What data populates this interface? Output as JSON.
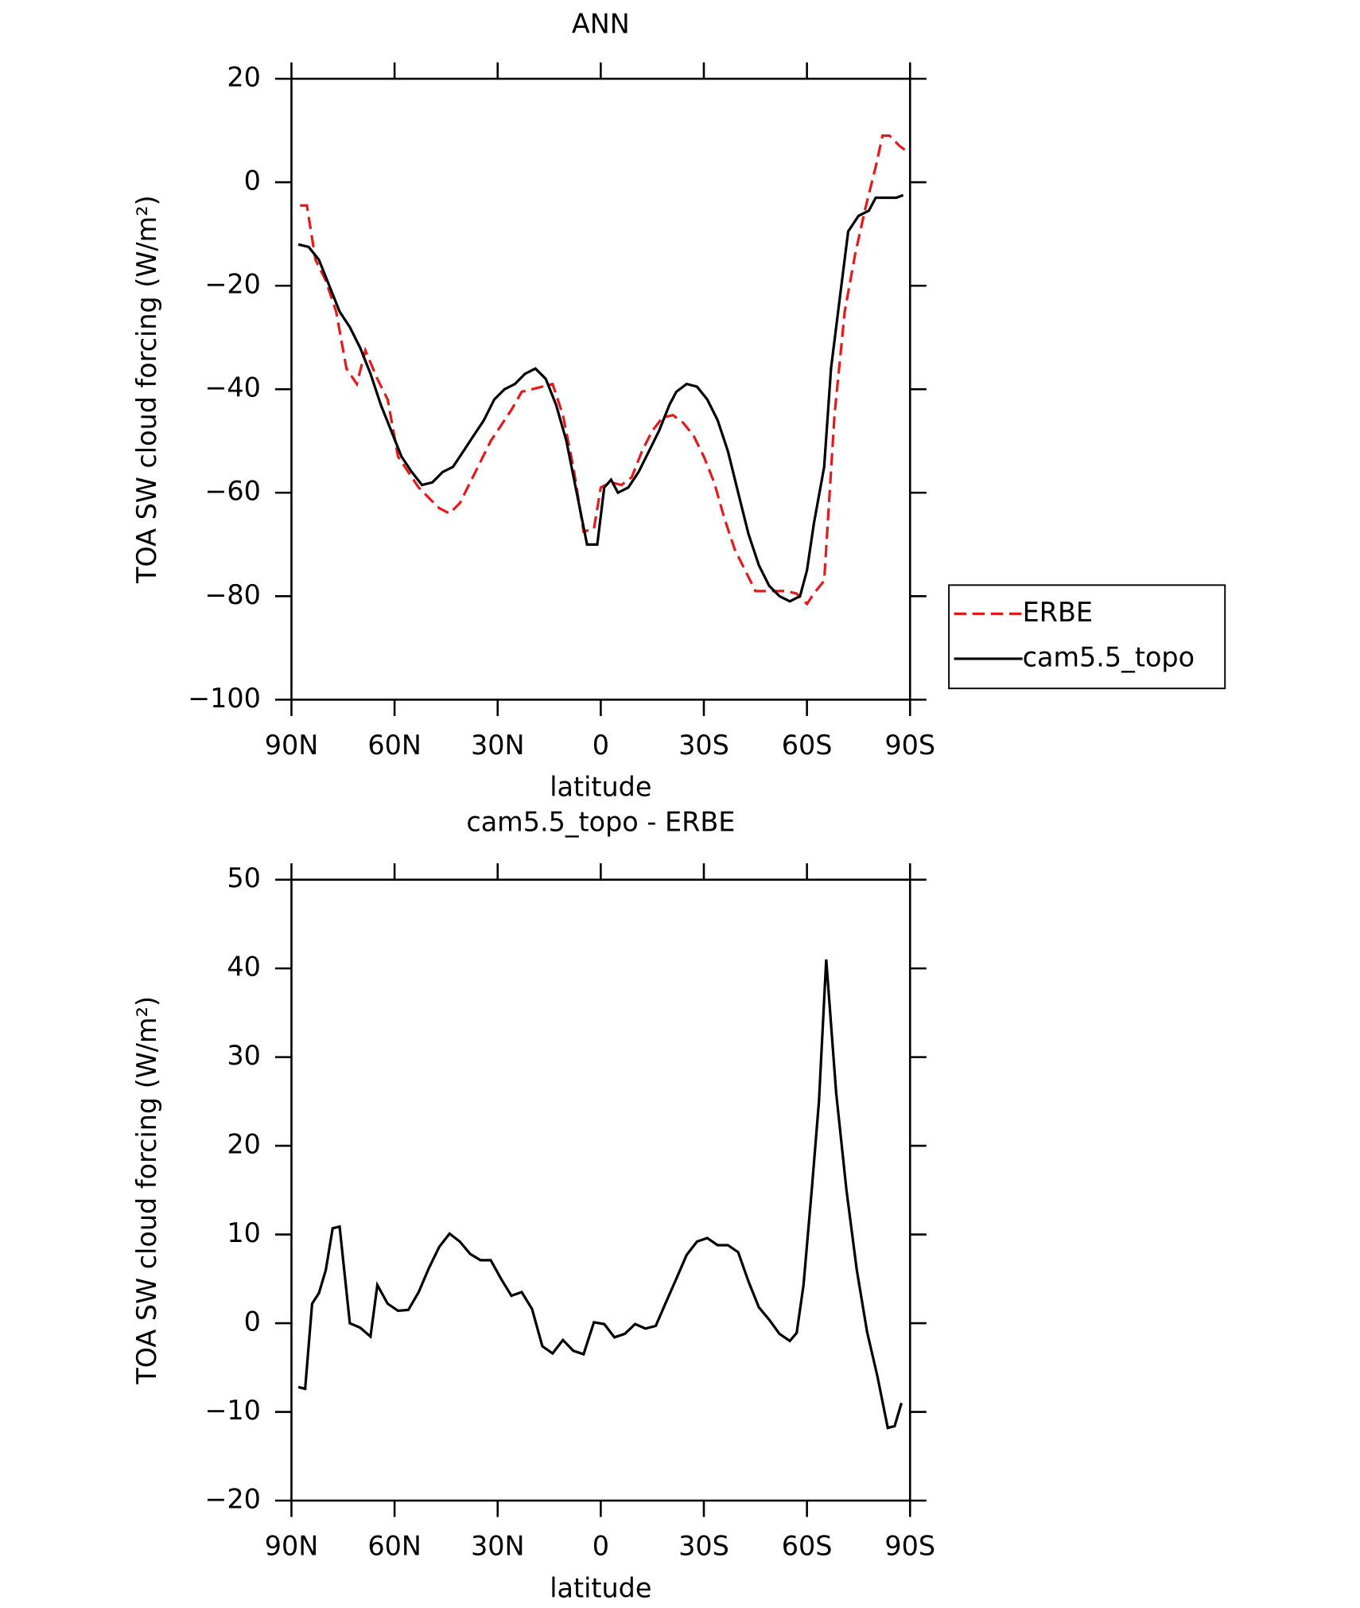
{
  "chart_data": [
    {
      "type": "line",
      "title": "ANN",
      "xlabel": "latitude",
      "ylabel": "TOA SW cloud forcing (W/m²)",
      "xlim": [
        90,
        -90
      ],
      "ylim": [
        -100,
        20
      ],
      "xticks": [
        {
          "value": 90,
          "label": "90N"
        },
        {
          "value": 60,
          "label": "60N"
        },
        {
          "value": 30,
          "label": "30N"
        },
        0,
        {
          "value": -30,
          "label": "30S"
        },
        {
          "value": -60,
          "label": "60S"
        },
        {
          "value": -90,
          "label": "90S"
        }
      ],
      "yticks": [
        {
          "value": -100,
          "label": "−100"
        },
        {
          "value": -80,
          "label": "−80"
        },
        {
          "value": -60,
          "label": "−60"
        },
        {
          "value": -40,
          "label": "−40"
        },
        {
          "value": -20,
          "label": "−20"
        },
        0,
        20
      ],
      "legend": "right",
      "series": [
        {
          "name": "ERBE",
          "color": "#e41a1c",
          "dashed": true,
          "x": [
            87.5,
            85.5,
            83,
            80,
            77,
            74,
            71,
            68.5,
            65,
            62,
            59,
            56,
            53,
            50,
            47,
            44,
            41,
            38,
            35,
            32,
            29,
            26,
            23,
            20,
            17,
            14,
            11,
            8,
            5,
            2,
            0,
            -3,
            -6,
            -9,
            -12,
            -15,
            -18,
            -21,
            -24,
            -27,
            -30,
            -33,
            -36,
            -39,
            -42,
            -45,
            -48,
            -51,
            -54,
            -57,
            -60,
            -62,
            -65,
            -68,
            -71,
            -74,
            -77,
            -80,
            -82,
            -84,
            -87,
            -89
          ],
          "values": [
            -4.5,
            -4.5,
            -15,
            -19,
            -25,
            -36,
            -39,
            -32.5,
            -38,
            -42,
            -53,
            -56,
            -59,
            -61,
            -63,
            -64,
            -62,
            -58,
            -54,
            -50,
            -47,
            -44,
            -40.5,
            -40,
            -39.5,
            -39,
            -45,
            -55,
            -67.5,
            -67,
            -59,
            -58,
            -58.5,
            -57,
            -52,
            -48,
            -45.5,
            -45,
            -46.5,
            -49,
            -53,
            -58,
            -65,
            -71,
            -75,
            -79,
            -79,
            -79,
            -79,
            -79.5,
            -81.5,
            -79.5,
            -77,
            -45,
            -25,
            -14,
            -5,
            3,
            9,
            9,
            7,
            6
          ]
        },
        {
          "name": "cam5.5_topo",
          "color": "#000000",
          "dashed": false,
          "x": [
            88,
            85,
            82,
            79,
            76,
            73,
            70,
            67,
            64,
            61,
            58,
            55,
            52,
            49,
            46,
            43,
            40,
            37,
            34,
            31,
            28,
            25,
            22,
            19,
            16,
            13,
            10,
            7,
            4,
            1,
            -1,
            -3,
            -5,
            -8,
            -11,
            -14,
            -17,
            -20,
            -22,
            -25,
            -28,
            -31,
            -34,
            -37,
            -40,
            -43,
            -46,
            -49,
            -52,
            -55,
            -58,
            -60,
            -62,
            -65,
            -67,
            -70,
            -72,
            -75,
            -78,
            -80,
            -83,
            -86,
            -88
          ],
          "values": [
            -12,
            -12.5,
            -15,
            -20,
            -25,
            -28,
            -32,
            -37,
            -43,
            -48,
            -53,
            -56,
            -58.5,
            -58,
            -56,
            -55,
            -52,
            -49,
            -46,
            -42,
            -40,
            -39,
            -37,
            -36,
            -38,
            -43,
            -50,
            -60,
            -70,
            -70,
            -59,
            -57.5,
            -60,
            -59,
            -56,
            -52,
            -48,
            -43,
            -40.5,
            -39,
            -39.5,
            -42,
            -46,
            -52,
            -60,
            -68,
            -74,
            -78,
            -80,
            -81,
            -80,
            -75,
            -66,
            -55,
            -36,
            -20,
            -9.5,
            -6.5,
            -5.5,
            -3,
            -3,
            -3,
            -2.5
          ]
        }
      ]
    },
    {
      "type": "line",
      "title": "cam5.5_topo - ERBE",
      "xlabel": "latitude",
      "ylabel": "TOA SW cloud forcing (W/m²)",
      "xlim": [
        90,
        -90
      ],
      "ylim": [
        -20,
        50
      ],
      "xticks": [
        {
          "value": 90,
          "label": "90N"
        },
        {
          "value": 60,
          "label": "60N"
        },
        {
          "value": 30,
          "label": "30N"
        },
        0,
        {
          "value": -30,
          "label": "30S"
        },
        {
          "value": -60,
          "label": "60S"
        },
        {
          "value": -90,
          "label": "90S"
        }
      ],
      "yticks": [
        {
          "value": -20,
          "label": "−20"
        },
        {
          "value": -10,
          "label": "−10"
        },
        0,
        10,
        20,
        30,
        40,
        50
      ],
      "series": [
        {
          "color": "#000000",
          "dashed": false,
          "x": [
            88,
            86,
            84,
            82,
            80,
            78,
            76,
            73,
            70,
            67,
            65,
            62,
            59,
            56,
            53,
            50,
            47,
            44,
            41,
            38,
            35,
            32,
            29,
            26,
            23,
            20,
            17,
            14,
            11,
            8,
            5,
            2,
            -1,
            -4,
            -7,
            -10,
            -13,
            -16,
            -19,
            -22,
            -25,
            -28,
            -31,
            -34,
            -37,
            -40,
            -43,
            -46,
            -49,
            -52,
            -55,
            -57,
            -59,
            -61.5,
            -63.5,
            -65.6,
            -68.5,
            -71.5,
            -74.5,
            -77.5,
            -80.5,
            -83.5,
            -85.5,
            -87.5
          ],
          "values": [
            -7.2,
            -7.4,
            2.2,
            3.4,
            6,
            10.7,
            10.9,
            0,
            -0.5,
            -1.5,
            4.3,
            2.2,
            1.4,
            1.5,
            3.5,
            6.2,
            8.6,
            10.1,
            9.2,
            7.8,
            7.1,
            7.1,
            5,
            3.1,
            3.5,
            1.6,
            -2.6,
            -3.4,
            -1.9,
            -3.1,
            -3.5,
            0.1,
            -0.1,
            -1.6,
            -1.2,
            -0.1,
            -0.6,
            -0.3,
            2.4,
            5,
            7.7,
            9.2,
            9.6,
            8.8,
            8.8,
            8,
            4.7,
            1.8,
            0.4,
            -1.2,
            -2,
            -1.1,
            4.3,
            15.5,
            25,
            41,
            26,
            15,
            6,
            -1,
            -6,
            -11.8,
            -11.6,
            -9
          ]
        }
      ]
    }
  ]
}
